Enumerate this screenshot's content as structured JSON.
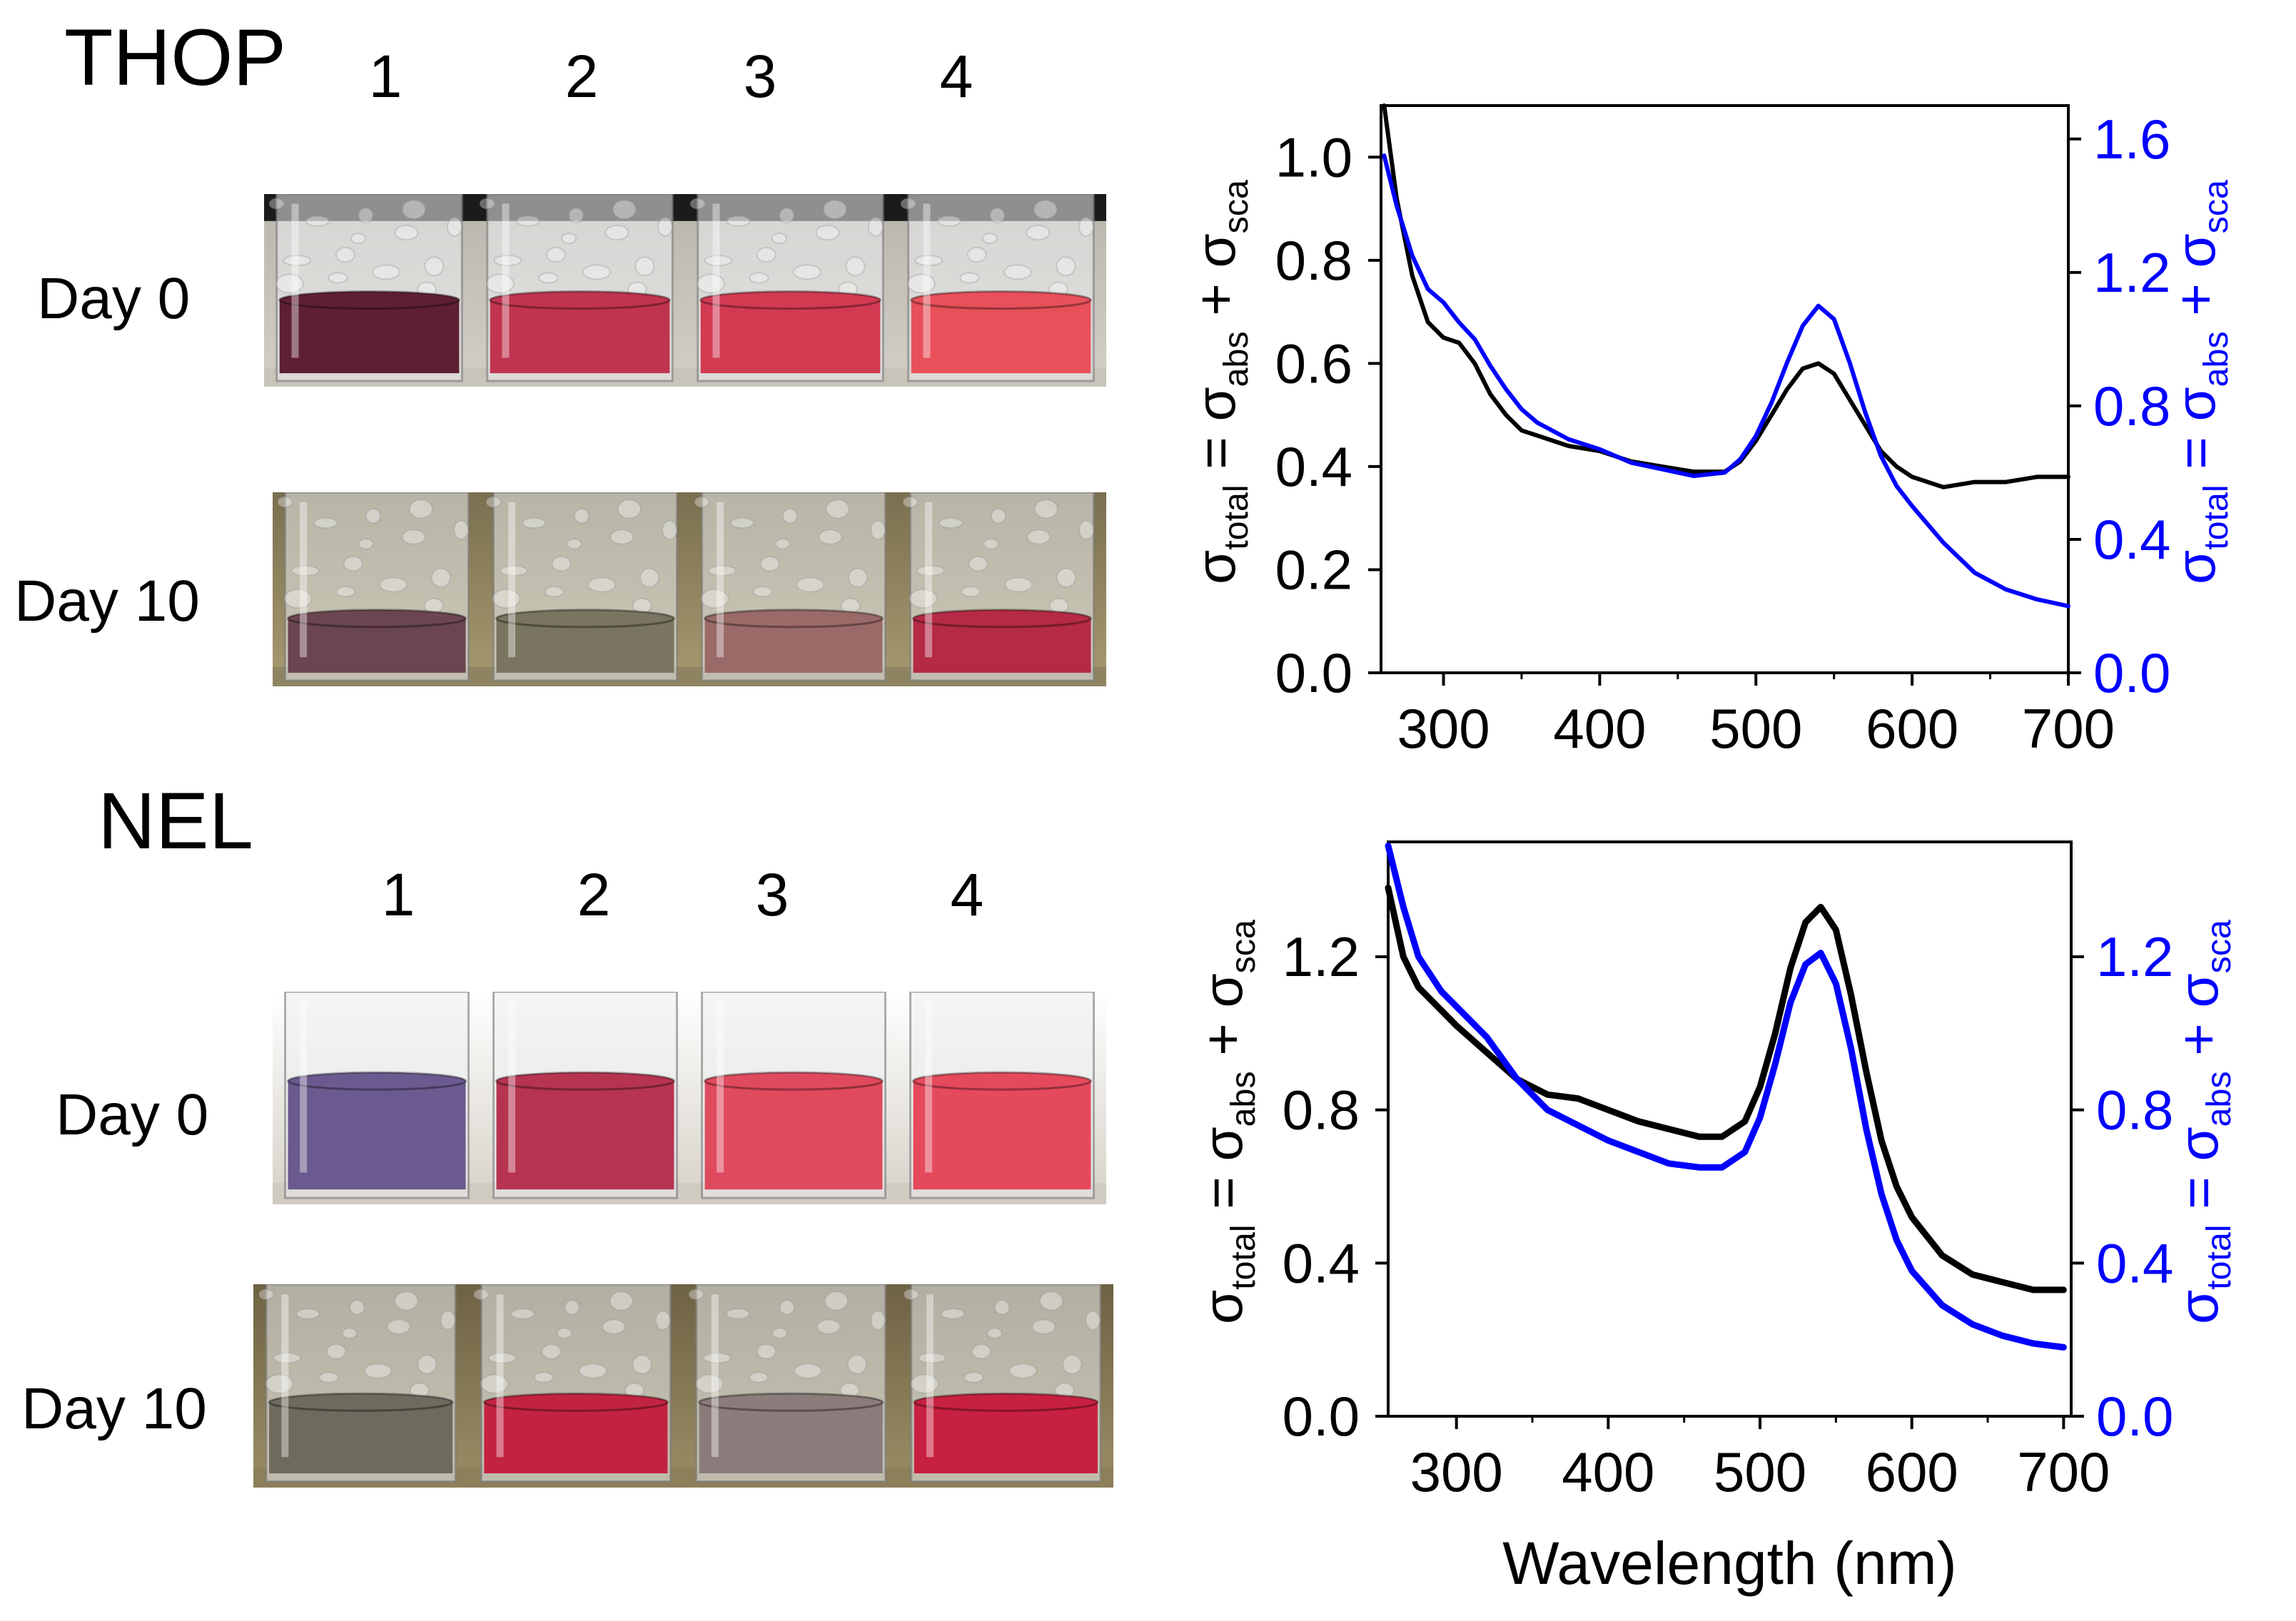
{
  "colors": {
    "black_series": "#000000",
    "blue_series": "#0000ff",
    "axis": "#000000",
    "background_table": "#c9c5bd",
    "background_wall_day10": "#8a7f5f"
  },
  "thop": {
    "title": "THOP",
    "vial_numbers": [
      "1",
      "2",
      "3",
      "4"
    ],
    "day0_label": "Day 0",
    "day10_label": "Day 10",
    "day0_vials": [
      "#5e1f34",
      "#c0344f",
      "#d23a52",
      "#e8505a"
    ],
    "day10_vials": [
      "#6b4650",
      "#7a7560",
      "#9a6a68",
      "#b52a45"
    ]
  },
  "nel": {
    "title": "NEL",
    "vial_numbers": [
      "1",
      "2",
      "3",
      "4"
    ],
    "day0_label": "Day 0",
    "day10_label": "Day 10",
    "day0_vials": [
      "#6b5a8f",
      "#b63450",
      "#e04a5e",
      "#e5495c"
    ],
    "day10_vials": [
      "#6e6a5e",
      "#c22340",
      "#8a7c7a",
      "#c82040"
    ]
  },
  "chart_data": [
    {
      "type": "line",
      "panel": "THOP",
      "x_range": [
        260,
        700
      ],
      "xticks": [
        "300",
        "400",
        "500",
        "600",
        "700"
      ],
      "left_axis": {
        "label_main": "σ",
        "label_sub": "total",
        "label_eq": " = σ",
        "label_sub2": "abs",
        "label_plus": " + σ",
        "label_sub3": "sca",
        "ylim": [
          0.0,
          1.1
        ],
        "ticks": [
          "0.0",
          "0.2",
          "0.4",
          "0.6",
          "0.8",
          "1.0"
        ]
      },
      "right_axis": {
        "label_main": "σ",
        "label_sub": "total",
        "label_eq": " = σ",
        "label_sub2": "abs",
        "label_plus": " + σ",
        "label_sub3": "sca",
        "ylim": [
          0.0,
          1.7
        ],
        "ticks": [
          "0.0",
          "0.4",
          "0.8",
          "1.2",
          "1.6"
        ]
      },
      "series": [
        {
          "name": "black (left axis)",
          "axis": "left",
          "x": [
            262,
            270,
            280,
            290,
            300,
            310,
            320,
            330,
            340,
            350,
            360,
            380,
            400,
            420,
            440,
            460,
            480,
            490,
            500,
            510,
            520,
            530,
            540,
            550,
            560,
            570,
            580,
            590,
            600,
            620,
            640,
            660,
            680,
            700
          ],
          "y": [
            1.1,
            0.92,
            0.77,
            0.68,
            0.65,
            0.64,
            0.6,
            0.54,
            0.5,
            0.47,
            0.46,
            0.44,
            0.43,
            0.41,
            0.4,
            0.39,
            0.39,
            0.41,
            0.45,
            0.5,
            0.55,
            0.59,
            0.6,
            0.58,
            0.53,
            0.48,
            0.43,
            0.4,
            0.38,
            0.36,
            0.37,
            0.37,
            0.38,
            0.38
          ]
        },
        {
          "name": "blue (right axis)",
          "axis": "right",
          "x": [
            262,
            270,
            280,
            290,
            300,
            310,
            320,
            330,
            340,
            350,
            360,
            380,
            400,
            420,
            440,
            460,
            480,
            490,
            500,
            510,
            520,
            530,
            540,
            550,
            560,
            570,
            580,
            590,
            600,
            620,
            640,
            660,
            680,
            700
          ],
          "y": [
            1.55,
            1.4,
            1.25,
            1.15,
            1.11,
            1.05,
            1.0,
            0.92,
            0.85,
            0.79,
            0.75,
            0.7,
            0.67,
            0.63,
            0.61,
            0.59,
            0.6,
            0.64,
            0.71,
            0.81,
            0.93,
            1.04,
            1.1,
            1.06,
            0.93,
            0.78,
            0.65,
            0.56,
            0.5,
            0.39,
            0.3,
            0.25,
            0.22,
            0.2
          ]
        }
      ]
    },
    {
      "type": "line",
      "panel": "NEL",
      "x_range": [
        255,
        705
      ],
      "xlabel": "Wavelength (nm)",
      "xticks": [
        "300",
        "400",
        "500",
        "600",
        "700"
      ],
      "left_axis": {
        "label_main": "σ",
        "label_sub": "total",
        "label_eq": " = σ",
        "label_sub2": "abs",
        "label_plus": " + σ",
        "label_sub3": "sca",
        "ylim": [
          0.0,
          1.5
        ],
        "ticks": [
          "0.0",
          "0.4",
          "0.8",
          "1.2"
        ]
      },
      "right_axis": {
        "label_main": "σ",
        "label_sub": "total",
        "label_eq": " = σ",
        "label_sub2": "abs",
        "label_plus": " + σ",
        "label_sub3": "sca",
        "ylim": [
          0.0,
          1.5
        ],
        "ticks": [
          "0.0",
          "0.4",
          "0.8",
          "1.2"
        ]
      },
      "series": [
        {
          "name": "black (left axis)",
          "axis": "left",
          "x": [
            255,
            265,
            275,
            290,
            300,
            320,
            340,
            360,
            380,
            400,
            420,
            440,
            460,
            475,
            490,
            500,
            510,
            520,
            530,
            540,
            550,
            560,
            570,
            580,
            590,
            600,
            620,
            640,
            660,
            680,
            700
          ],
          "y": [
            1.38,
            1.2,
            1.12,
            1.06,
            1.02,
            0.95,
            0.88,
            0.84,
            0.83,
            0.8,
            0.77,
            0.75,
            0.73,
            0.73,
            0.77,
            0.86,
            1.0,
            1.17,
            1.29,
            1.33,
            1.27,
            1.1,
            0.9,
            0.72,
            0.6,
            0.52,
            0.42,
            0.37,
            0.35,
            0.33,
            0.33
          ]
        },
        {
          "name": "blue (right axis)",
          "axis": "right",
          "x": [
            255,
            265,
            275,
            290,
            300,
            320,
            340,
            360,
            380,
            400,
            420,
            440,
            460,
            475,
            490,
            500,
            510,
            520,
            530,
            540,
            550,
            560,
            570,
            580,
            590,
            600,
            620,
            640,
            660,
            680,
            700
          ],
          "y": [
            1.49,
            1.33,
            1.2,
            1.11,
            1.07,
            0.99,
            0.88,
            0.8,
            0.76,
            0.72,
            0.69,
            0.66,
            0.65,
            0.65,
            0.69,
            0.78,
            0.92,
            1.08,
            1.18,
            1.21,
            1.13,
            0.96,
            0.75,
            0.58,
            0.46,
            0.38,
            0.29,
            0.24,
            0.21,
            0.19,
            0.18
          ]
        }
      ]
    }
  ]
}
